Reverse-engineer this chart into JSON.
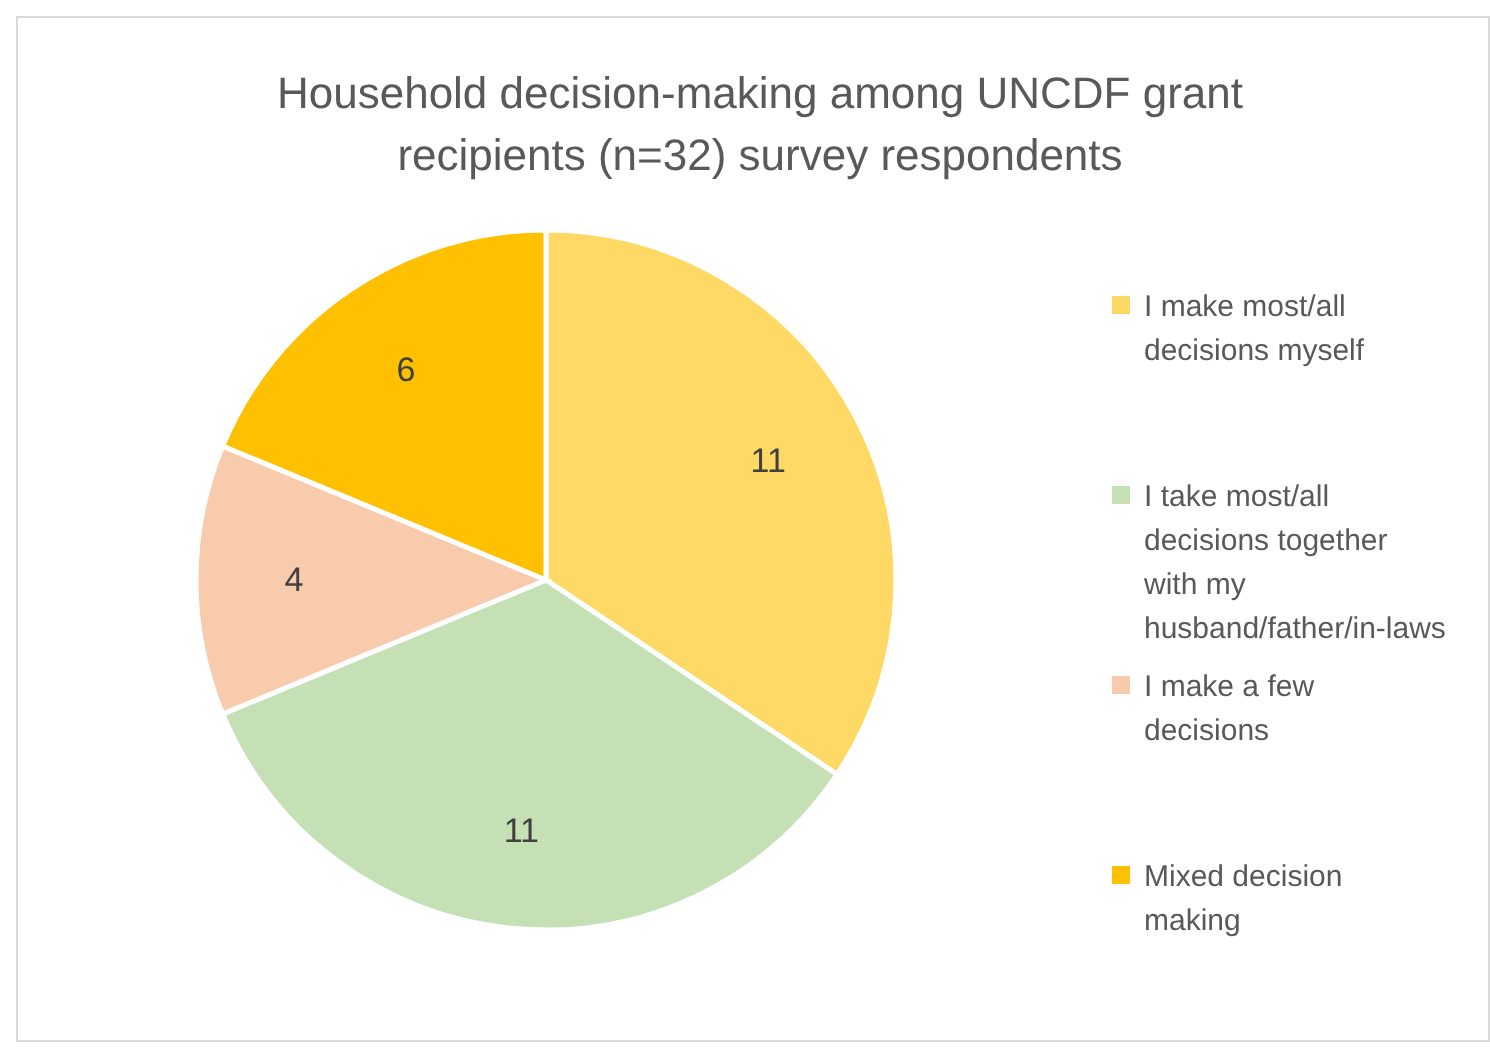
{
  "chart_data": {
    "type": "pie",
    "title": "Household decision-making among UNCDF grant recipients (n=32) survey respondents",
    "categories": [
      "I make most/all decisions myself",
      "I take most/all decisions together with my husband/father/in-laws",
      "I make a few decisions",
      "Mixed decision making"
    ],
    "values": [
      11,
      11,
      4,
      6
    ],
    "colors": [
      "#ffd966",
      "#c5e0b4",
      "#f8cbad",
      "#ffc000"
    ],
    "data_labels": true,
    "legend": "right"
  }
}
